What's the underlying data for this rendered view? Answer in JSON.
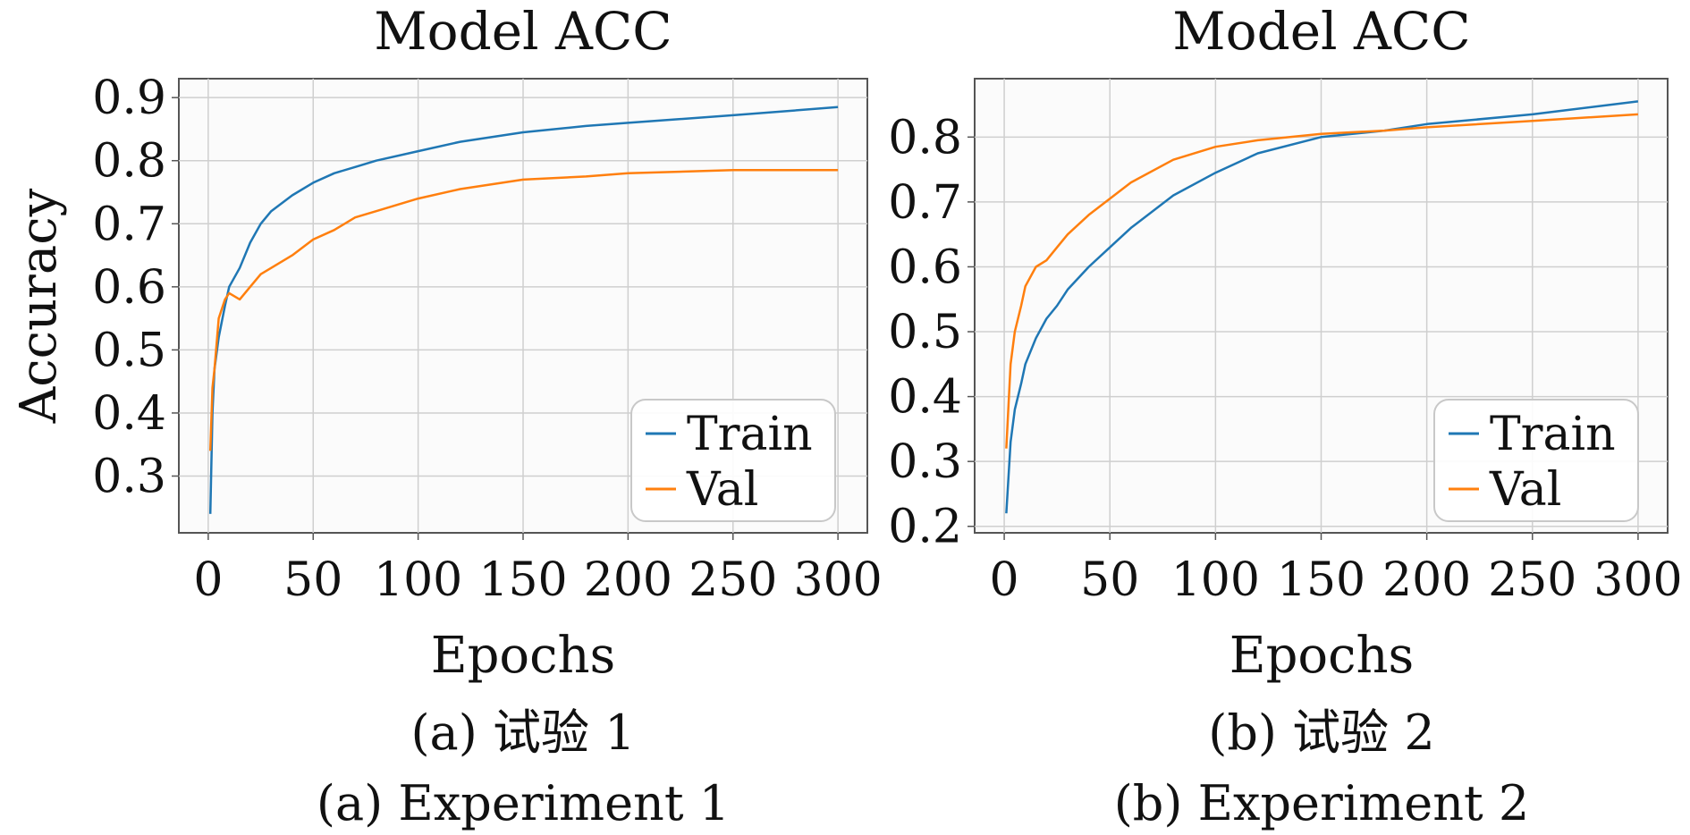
{
  "figure": {
    "panels": [
      {
        "title": "Model ACC",
        "xlabel": "Epochs",
        "ylabel": "Accuracy",
        "caption_cn": "(a) 试验 1",
        "caption_en": "(a) Experiment 1"
      },
      {
        "title": "Model ACC",
        "xlabel": "Epochs",
        "ylabel": "",
        "caption_cn": "(b) 试验 2",
        "caption_en": "(b) Experiment 2"
      }
    ]
  },
  "chart_data": [
    {
      "type": "line",
      "title": "Model ACC",
      "xlabel": "Epochs",
      "ylabel": "Accuracy",
      "xlim": [
        -14,
        314
      ],
      "ylim": [
        0.21,
        0.93
      ],
      "xticks": [
        0,
        50,
        100,
        150,
        200,
        250,
        300
      ],
      "yticks": [
        0.3,
        0.4,
        0.5,
        0.6,
        0.7,
        0.8,
        0.9
      ],
      "ytick_decimals": 1,
      "grid": true,
      "legend": "bottom-right",
      "series": [
        {
          "name": "Train",
          "color": "#1f77b4",
          "x": [
            1,
            2,
            3,
            5,
            8,
            10,
            15,
            20,
            25,
            30,
            40,
            50,
            60,
            70,
            80,
            100,
            120,
            150,
            180,
            200,
            250,
            300
          ],
          "values": [
            0.24,
            0.4,
            0.47,
            0.52,
            0.57,
            0.6,
            0.63,
            0.67,
            0.7,
            0.72,
            0.745,
            0.765,
            0.78,
            0.79,
            0.8,
            0.815,
            0.83,
            0.845,
            0.855,
            0.86,
            0.872,
            0.885
          ]
        },
        {
          "name": "Val",
          "color": "#ff7f0e",
          "x": [
            1,
            2,
            3,
            5,
            8,
            10,
            15,
            20,
            25,
            30,
            40,
            50,
            60,
            70,
            80,
            100,
            120,
            150,
            180,
            200,
            250,
            300
          ],
          "values": [
            0.34,
            0.44,
            0.47,
            0.55,
            0.58,
            0.59,
            0.58,
            0.6,
            0.62,
            0.63,
            0.65,
            0.675,
            0.69,
            0.71,
            0.72,
            0.74,
            0.755,
            0.77,
            0.775,
            0.78,
            0.785,
            0.785
          ]
        }
      ]
    },
    {
      "type": "line",
      "title": "Model ACC",
      "xlabel": "Epochs",
      "ylabel": "",
      "xlim": [
        -14,
        314
      ],
      "ylim": [
        0.19,
        0.89
      ],
      "xticks": [
        0,
        50,
        100,
        150,
        200,
        250,
        300
      ],
      "yticks": [
        0.2,
        0.3,
        0.4,
        0.5,
        0.6,
        0.7,
        0.8
      ],
      "ytick_decimals": 1,
      "grid": true,
      "legend": "bottom-right",
      "series": [
        {
          "name": "Train",
          "color": "#1f77b4",
          "x": [
            1,
            3,
            5,
            8,
            10,
            15,
            20,
            25,
            30,
            40,
            50,
            60,
            80,
            100,
            120,
            150,
            180,
            200,
            250,
            300
          ],
          "values": [
            0.22,
            0.33,
            0.38,
            0.42,
            0.45,
            0.49,
            0.52,
            0.54,
            0.565,
            0.6,
            0.63,
            0.66,
            0.71,
            0.745,
            0.775,
            0.8,
            0.81,
            0.82,
            0.835,
            0.855
          ]
        },
        {
          "name": "Val",
          "color": "#ff7f0e",
          "x": [
            1,
            3,
            5,
            8,
            10,
            15,
            20,
            25,
            30,
            40,
            50,
            60,
            80,
            100,
            120,
            150,
            180,
            200,
            250,
            300
          ],
          "values": [
            0.32,
            0.45,
            0.5,
            0.54,
            0.57,
            0.6,
            0.61,
            0.63,
            0.65,
            0.68,
            0.705,
            0.73,
            0.765,
            0.785,
            0.795,
            0.805,
            0.81,
            0.815,
            0.825,
            0.835
          ]
        }
      ]
    }
  ]
}
